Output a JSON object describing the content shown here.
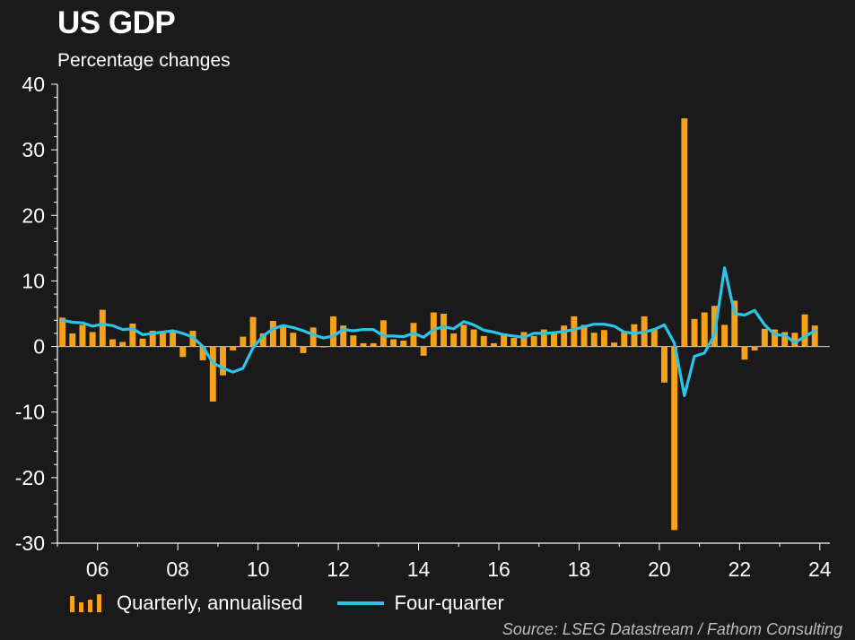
{
  "title": "US GDP",
  "subtitle": "Percentage changes",
  "source": "Source: LSEG Datastream / Fathom Consulting",
  "colors": {
    "bars": "#f5a21a",
    "line": "#2bc4ea",
    "background": "#1a1a1a"
  },
  "chart_data": {
    "type": "bar",
    "ylim": [
      -30,
      40
    ],
    "yticks": [
      "40",
      "30",
      "20",
      "10",
      "0",
      "-10",
      "-20",
      "-30"
    ],
    "xticks": [
      "06",
      "08",
      "10",
      "12",
      "14",
      "16",
      "18",
      "20",
      "22",
      "24"
    ],
    "x_start": 2005.0,
    "x_end": 2024.25,
    "grid": false,
    "legend_position": "bottom",
    "series": [
      {
        "name": "Quarterly, annualised",
        "type": "bar",
        "x": [
          2005.0,
          2005.25,
          2005.5,
          2005.75,
          2006.0,
          2006.25,
          2006.5,
          2006.75,
          2007.0,
          2007.25,
          2007.5,
          2007.75,
          2008.0,
          2008.25,
          2008.5,
          2008.75,
          2009.0,
          2009.25,
          2009.5,
          2009.75,
          2010.0,
          2010.25,
          2010.5,
          2010.75,
          2011.0,
          2011.25,
          2011.5,
          2011.75,
          2012.0,
          2012.25,
          2012.5,
          2012.75,
          2013.0,
          2013.25,
          2013.5,
          2013.75,
          2014.0,
          2014.25,
          2014.5,
          2014.75,
          2015.0,
          2015.25,
          2015.5,
          2015.75,
          2016.0,
          2016.25,
          2016.5,
          2016.75,
          2017.0,
          2017.25,
          2017.5,
          2017.75,
          2018.0,
          2018.25,
          2018.5,
          2018.75,
          2019.0,
          2019.25,
          2019.5,
          2019.75,
          2020.0,
          2020.25,
          2020.5,
          2020.75,
          2021.0,
          2021.25,
          2021.5,
          2021.75,
          2022.0,
          2022.25,
          2022.5,
          2022.75,
          2023.0,
          2023.25,
          2023.5,
          2023.75
        ],
        "values": [
          4.4,
          2.0,
          3.3,
          2.2,
          5.6,
          1.1,
          0.7,
          3.5,
          1.2,
          2.4,
          2.3,
          2.3,
          -1.6,
          2.4,
          -2.1,
          -8.4,
          -4.4,
          -0.6,
          1.5,
          4.5,
          2.0,
          3.9,
          3.0,
          2.1,
          -1.0,
          2.9,
          -0.1,
          4.6,
          3.2,
          1.7,
          0.5,
          0.5,
          4.0,
          1.1,
          0.9,
          3.6,
          -1.4,
          5.2,
          5.0,
          2.0,
          3.3,
          2.6,
          1.6,
          0.5,
          2.0,
          1.3,
          2.2,
          1.6,
          2.6,
          2.3,
          3.2,
          4.6,
          3.3,
          2.1,
          2.5,
          0.6,
          2.2,
          3.4,
          4.6,
          2.6,
          -5.5,
          -28.0,
          34.8,
          4.2,
          5.2,
          6.2,
          3.3,
          7.0,
          -2.0,
          -0.6,
          2.7,
          2.6,
          2.2,
          2.1,
          4.9,
          3.2
        ]
      },
      {
        "name": "Four-quarter",
        "type": "line",
        "x": [
          2005.0,
          2005.25,
          2005.5,
          2005.75,
          2006.0,
          2006.25,
          2006.5,
          2006.75,
          2007.0,
          2007.25,
          2007.5,
          2007.75,
          2008.0,
          2008.25,
          2008.5,
          2008.75,
          2009.0,
          2009.25,
          2009.5,
          2009.75,
          2010.0,
          2010.25,
          2010.5,
          2010.75,
          2011.0,
          2011.25,
          2011.5,
          2011.75,
          2012.0,
          2012.25,
          2012.5,
          2012.75,
          2013.0,
          2013.25,
          2013.5,
          2013.75,
          2014.0,
          2014.25,
          2014.5,
          2014.75,
          2015.0,
          2015.25,
          2015.5,
          2015.75,
          2016.0,
          2016.25,
          2016.5,
          2016.75,
          2017.0,
          2017.25,
          2017.5,
          2017.75,
          2018.0,
          2018.25,
          2018.5,
          2018.75,
          2019.0,
          2019.25,
          2019.5,
          2019.75,
          2020.0,
          2020.25,
          2020.5,
          2020.75,
          2021.0,
          2021.25,
          2021.5,
          2021.75,
          2022.0,
          2022.25,
          2022.5,
          2022.75,
          2023.0,
          2023.25,
          2023.5,
          2023.75
        ],
        "values": [
          4.0,
          3.7,
          3.6,
          3.1,
          3.4,
          3.2,
          2.6,
          2.7,
          1.8,
          2.0,
          2.2,
          2.4,
          2.0,
          1.4,
          0.0,
          -2.5,
          -3.3,
          -3.9,
          -3.3,
          -0.2,
          1.6,
          2.7,
          3.2,
          2.9,
          2.4,
          1.8,
          1.3,
          1.6,
          2.6,
          2.4,
          2.6,
          2.6,
          1.6,
          1.6,
          1.5,
          2.0,
          1.4,
          2.6,
          3.0,
          2.7,
          3.8,
          3.3,
          2.5,
          2.2,
          1.8,
          1.6,
          1.4,
          2.0,
          2.0,
          2.1,
          2.3,
          2.6,
          3.0,
          3.4,
          3.4,
          3.1,
          2.2,
          2.0,
          2.2,
          2.6,
          3.3,
          0.5,
          -7.5,
          -1.5,
          -1.0,
          1.8,
          12.0,
          5.0,
          4.8,
          5.5,
          3.3,
          1.8,
          1.7,
          0.6,
          1.5,
          2.4
        ]
      }
    ]
  }
}
